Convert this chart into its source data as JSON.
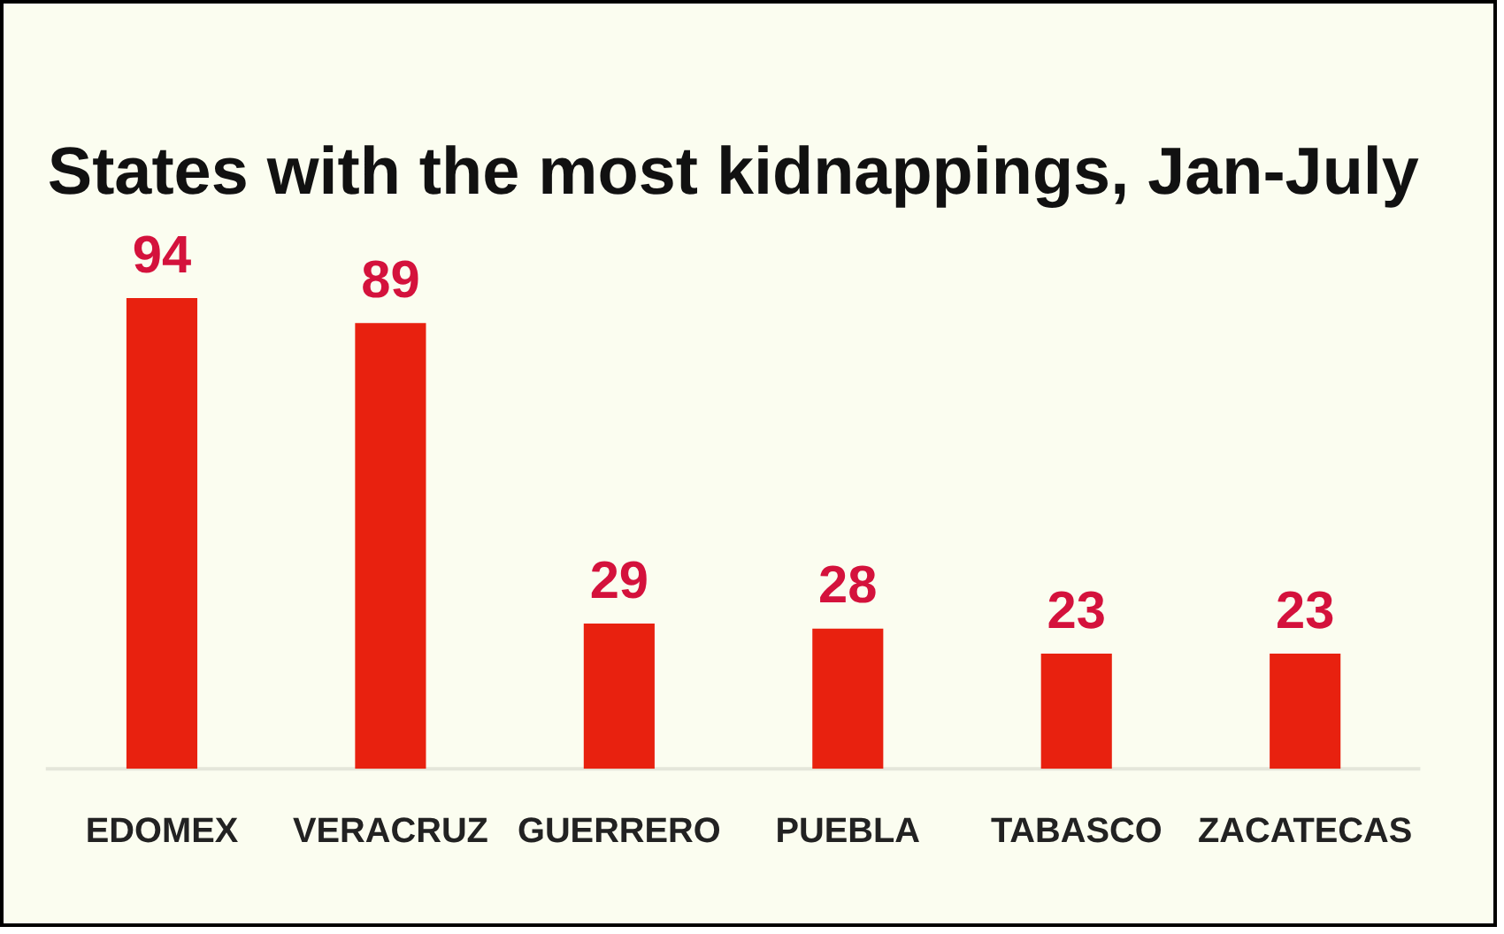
{
  "chart_data": {
    "type": "bar",
    "title": "States with the most kidnappings, Jan-July",
    "categories": [
      "EDOMEX",
      "VERACRUZ",
      "GUERRERO",
      "PUEBLA",
      "TABASCO",
      "ZACATECAS"
    ],
    "values": [
      94,
      89,
      29,
      28,
      23,
      23
    ],
    "color": "#e8210f",
    "data_labels": true,
    "tick_labels": "x"
  }
}
